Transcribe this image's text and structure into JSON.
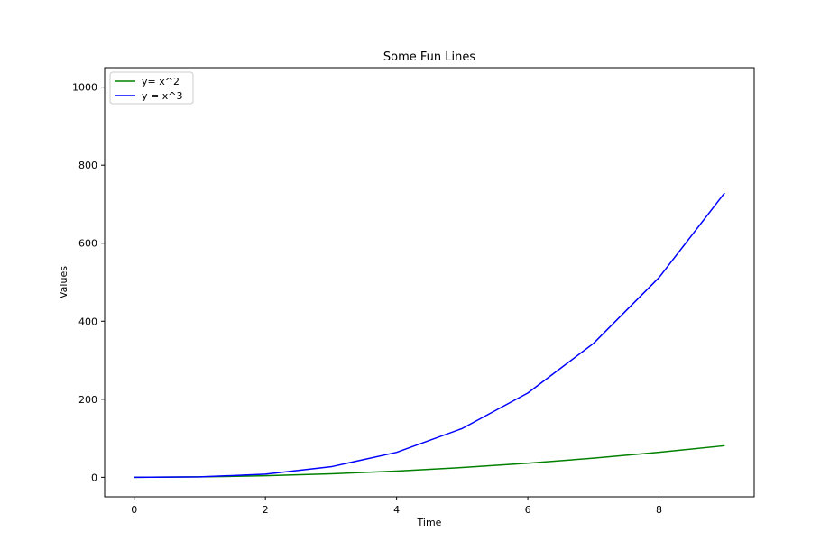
{
  "chart_data": {
    "type": "line",
    "title": "Some Fun Lines",
    "xlabel": "Time",
    "ylabel": "Values",
    "x": [
      0,
      1,
      2,
      3,
      4,
      5,
      6,
      7,
      8,
      9
    ],
    "xlim": [
      -0.45,
      9.45
    ],
    "ylim": [
      -50,
      1050
    ],
    "xticks": [
      0,
      2,
      4,
      6,
      8
    ],
    "yticks": [
      0,
      200,
      400,
      600,
      800,
      1000
    ],
    "grid": false,
    "legend_position": "top-left",
    "series": [
      {
        "name": "y= x^2",
        "color": "#008000",
        "values": [
          0,
          1,
          4,
          9,
          16,
          25,
          36,
          49,
          64,
          81
        ]
      },
      {
        "name": "y = x^3",
        "color": "#0000ff",
        "values": [
          0,
          1,
          8,
          27,
          64,
          125,
          216,
          343,
          512,
          729
        ]
      }
    ]
  }
}
